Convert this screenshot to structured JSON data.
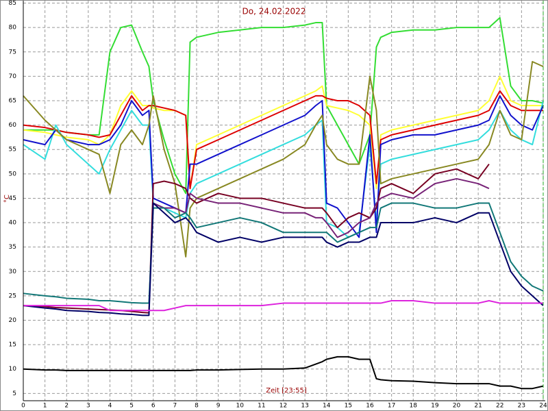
{
  "chart_data": {
    "type": "line",
    "title": "Do, 24.02.2022",
    "x_label": "Zeit [23:55]",
    "y_label": "°C",
    "grid": true,
    "xlim": [
      0,
      24
    ],
    "ylim": [
      3.5,
      85.5
    ],
    "xticks": [
      0,
      1,
      2,
      3,
      4,
      5,
      6,
      7,
      8,
      9,
      10,
      11,
      12,
      13,
      14,
      15,
      16,
      17,
      18,
      19,
      20,
      21,
      22,
      23,
      24
    ],
    "yticks": [
      5,
      10,
      15,
      20,
      25,
      30,
      35,
      40,
      45,
      50,
      55,
      60,
      65,
      70,
      75,
      80,
      85
    ],
    "x": [
      0,
      1,
      1.5,
      2,
      3,
      3.5,
      4,
      4.5,
      5,
      5.5,
      5.8,
      6,
      6.5,
      7,
      7.5,
      7.7,
      8,
      9,
      10,
      11,
      12,
      13,
      13.5,
      13.8,
      14,
      14.5,
      15,
      15.5,
      16,
      16.3,
      16.5,
      17,
      18,
      19,
      20,
      21,
      21.5,
      22,
      22.5,
      23,
      23.5,
      24
    ],
    "series": [
      {
        "color": "#33dd33",
        "values": [
          59,
          59,
          59,
          58.5,
          58,
          58,
          75,
          80,
          80.5,
          75,
          72,
          65,
          57,
          50,
          46,
          77,
          78,
          79,
          79.5,
          80,
          80,
          80.5,
          81,
          81,
          64,
          60,
          56,
          52,
          58,
          76,
          78,
          79,
          79.5,
          79.5,
          80,
          80,
          80,
          82,
          68,
          65,
          65,
          64.5
        ]
      },
      {
        "color": "#ffff33",
        "values": [
          59,
          58.5,
          58,
          57.5,
          57,
          56,
          58,
          64,
          67,
          64,
          64,
          63.5,
          63,
          63,
          62,
          47,
          56,
          58,
          60,
          62,
          64,
          66,
          67,
          68,
          64,
          63.5,
          63,
          62,
          60,
          47,
          58,
          59,
          60,
          61,
          62,
          63,
          65,
          70,
          65,
          64,
          64,
          64
        ]
      },
      {
        "color": "#dd0000",
        "values": [
          60,
          59.5,
          59,
          58.5,
          58,
          57.5,
          58,
          62,
          66,
          63,
          64,
          64,
          63.5,
          63,
          62,
          47,
          55,
          57,
          59,
          61,
          63,
          65,
          66,
          66,
          65.5,
          65,
          65,
          64,
          62,
          48,
          57,
          58,
          59,
          60,
          61,
          62,
          63,
          67,
          64,
          63,
          63,
          63
        ]
      },
      {
        "color": "#33dddd",
        "values": [
          56,
          53,
          60,
          56,
          52,
          50,
          55,
          59,
          63,
          60,
          60,
          44,
          43,
          42,
          41,
          46,
          48,
          50,
          52,
          54,
          56,
          58,
          60,
          61,
          40,
          39,
          37,
          38,
          56,
          40,
          52,
          53,
          54,
          55,
          56,
          57,
          59,
          63,
          59,
          57,
          56,
          65
        ]
      },
      {
        "color": "#1111cc",
        "values": [
          57,
          56,
          59,
          57,
          56,
          56,
          57,
          60,
          65,
          62,
          63,
          45,
          44,
          43,
          42,
          52,
          52,
          54,
          56,
          58,
          60,
          62,
          64,
          65,
          44,
          43,
          40,
          37,
          58,
          38,
          56,
          57,
          58,
          58,
          59,
          60,
          61,
          66,
          62,
          60,
          59,
          64
        ]
      },
      {
        "color": "#888822",
        "values": [
          66,
          61,
          59,
          57,
          55,
          54,
          46,
          56,
          59,
          56,
          60,
          66,
          55,
          48,
          33,
          43,
          45,
          47,
          49,
          51,
          53,
          56,
          60,
          62,
          56,
          53,
          52,
          52,
          70,
          63,
          48,
          49,
          50,
          51,
          52,
          53,
          56,
          63,
          58,
          57,
          73,
          72
        ]
      },
      {
        "color": "#770022",
        "values": [
          23,
          22.8,
          22.6,
          22.5,
          22.3,
          22.2,
          22.1,
          22,
          21.8,
          21.6,
          21.5,
          48,
          48.5,
          48,
          47,
          45,
          44,
          46,
          45,
          45,
          44,
          43,
          43,
          43,
          42,
          39,
          41,
          42,
          41,
          43,
          47,
          48,
          46,
          50,
          51,
          49,
          52,
          null,
          null,
          null,
          null,
          null
        ]
      },
      {
        "color": "#772277",
        "values": [
          null,
          null,
          null,
          null,
          null,
          null,
          null,
          null,
          null,
          null,
          null,
          44,
          43,
          43,
          42,
          46,
          45,
          44,
          44,
          43,
          42,
          42,
          41,
          41,
          40,
          37,
          38,
          40,
          41,
          44,
          45,
          46,
          45,
          48,
          49,
          48,
          47,
          null,
          null,
          null,
          null,
          null
        ]
      },
      {
        "color": "#117777",
        "values": [
          25.5,
          25,
          24.8,
          24.5,
          24.3,
          24,
          24,
          23.8,
          23.6,
          23.5,
          23.5,
          43,
          43,
          41,
          42,
          41,
          39,
          40,
          41,
          40,
          38,
          38,
          38,
          38,
          38,
          36,
          37,
          38,
          39,
          39,
          43,
          44,
          44,
          43,
          43,
          44,
          44,
          38,
          32,
          29,
          27,
          26
        ]
      },
      {
        "color": "#000066",
        "values": [
          23,
          22.5,
          22.3,
          22,
          21.8,
          21.6,
          21.5,
          21.3,
          21.2,
          21,
          21,
          44,
          42,
          40,
          41,
          40,
          38,
          36,
          37,
          36,
          37,
          37,
          37,
          37,
          36,
          35,
          36,
          36,
          37,
          37,
          40,
          40,
          40,
          41,
          40,
          42,
          42,
          36,
          30,
          27,
          25,
          23
        ]
      },
      {
        "color": "#dd22dd",
        "values": [
          23,
          23,
          23,
          23,
          23,
          23,
          22,
          22,
          22,
          22,
          22,
          22,
          22,
          22.5,
          23,
          23,
          23,
          23,
          23,
          23,
          23.5,
          23.5,
          23.5,
          23.5,
          23.5,
          23.5,
          23.5,
          23.5,
          23.5,
          23.5,
          23.5,
          24,
          24,
          23.5,
          23.5,
          23.5,
          24,
          23.5,
          23.5,
          23.5,
          23.5,
          23.5
        ]
      },
      {
        "color": "#000000",
        "values": [
          10,
          9.8,
          9.8,
          9.7,
          9.7,
          9.7,
          9.7,
          9.7,
          9.7,
          9.7,
          9.7,
          9.7,
          9.7,
          9.7,
          9.7,
          9.7,
          9.8,
          9.8,
          9.9,
          10,
          10,
          10.2,
          11,
          11.5,
          12,
          12.5,
          12.5,
          12,
          12,
          8,
          7.8,
          7.6,
          7.5,
          7.2,
          7,
          7,
          7,
          6.5,
          6.5,
          6,
          6,
          6.5
        ]
      }
    ]
  }
}
